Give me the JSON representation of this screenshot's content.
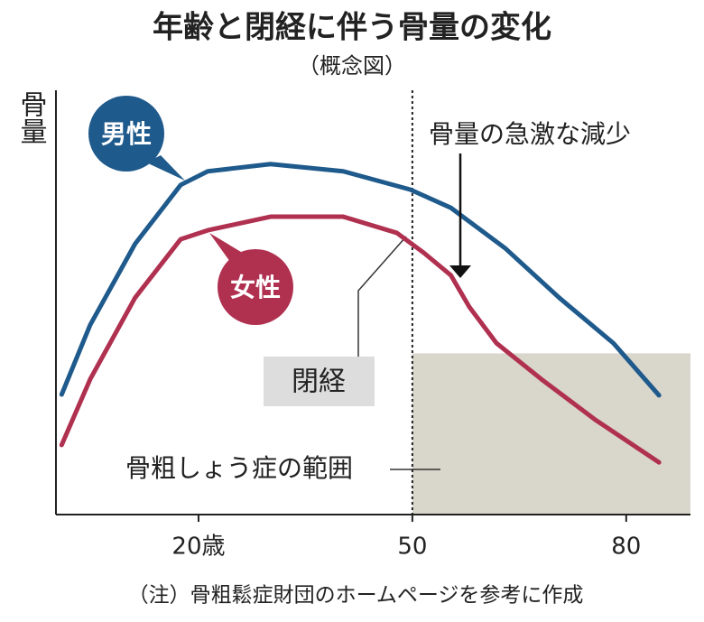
{
  "chart_data": {
    "type": "line",
    "title": "年齢と閉経に伴う骨量の変化",
    "subtitle": "（概念図）",
    "ylabel": "骨量",
    "xlim": [
      0,
      88
    ],
    "ylim": [
      0,
      100
    ],
    "xticks": [
      {
        "value": 20,
        "label": "20歳"
      },
      50,
      80
    ],
    "series": [
      {
        "name": "男性",
        "color": "#1f5a8c",
        "x": [
          0.8,
          4.8,
          11.1,
          17.5,
          21.3,
          30.1,
          40.3,
          49.7,
          55.4,
          63.0,
          70.6,
          78.2,
          84.6
        ],
        "values": [
          28.3,
          44.7,
          63.8,
          77.7,
          80.9,
          82.6,
          80.9,
          76.6,
          72.3,
          62.8,
          51.1,
          40.4,
          28.1
        ]
      },
      {
        "name": "女性",
        "color": "#b03050",
        "x": [
          0.8,
          4.8,
          11.1,
          17.5,
          21.3,
          30.1,
          40.3,
          47.8,
          51.6,
          55.4,
          58.0,
          61.8,
          68.1,
          75.7,
          84.6
        ],
        "values": [
          16.4,
          31.9,
          51.1,
          64.9,
          67.0,
          70.2,
          70.2,
          66.4,
          61.7,
          56.4,
          48.9,
          40.4,
          31.9,
          22.3,
          12.3
        ]
      }
    ],
    "menopause": {
      "label": "閉経",
      "x": 50
    },
    "region": {
      "label": "骨粗しょう症の範囲",
      "x_start": 50,
      "y_max": 38
    },
    "annotation": "骨量の急激な減少",
    "note": "（注）骨粗鬆症財団のホームページを参考に作成"
  }
}
